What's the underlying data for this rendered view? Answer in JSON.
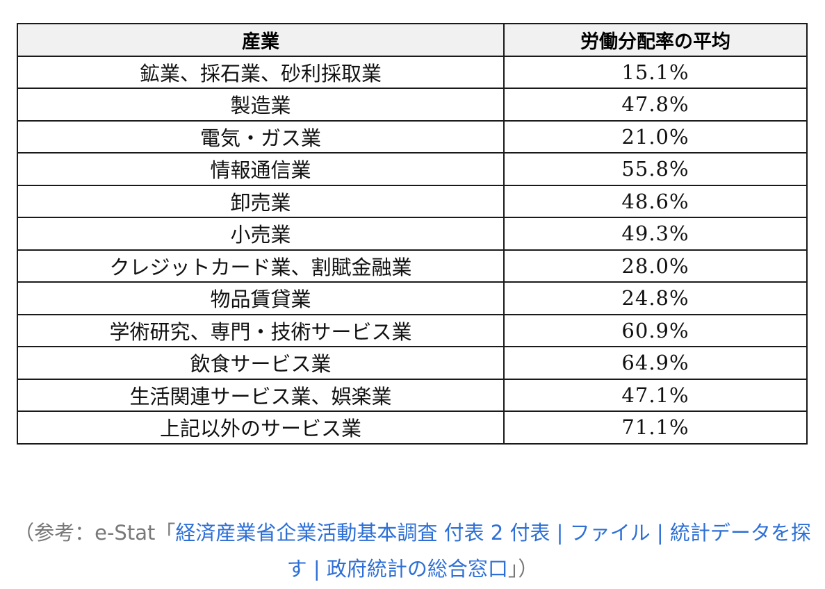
{
  "table": {
    "headers": {
      "industry": "産業",
      "average": "労働分配率の平均"
    },
    "rows": [
      {
        "industry": "鉱業、採石業、砂利採取業",
        "value": "15.1%"
      },
      {
        "industry": "製造業",
        "value": "47.8%"
      },
      {
        "industry": "電気・ガス業",
        "value": "21.0%"
      },
      {
        "industry": "情報通信業",
        "value": "55.8%"
      },
      {
        "industry": "卸売業",
        "value": "48.6%"
      },
      {
        "industry": "小売業",
        "value": "49.3%"
      },
      {
        "industry": "クレジットカード業、割賦金融業",
        "value": "28.0%"
      },
      {
        "industry": "物品賃貸業",
        "value": "24.8%"
      },
      {
        "industry": "学術研究、専門・技術サービス業",
        "value": "60.9%"
      },
      {
        "industry": "飲食サービス業",
        "value": "64.9%"
      },
      {
        "industry": "生活関連サービス業、娯楽業",
        "value": "47.1%"
      },
      {
        "industry": "上記以外のサービス業",
        "value": "71.1%"
      }
    ]
  },
  "source": {
    "prefix": "（参考：e-Stat「",
    "link_text": "経済産業省企業活動基本調査 付表 2 付表 | ファイル | 統計データを探す | 政府統計の総合窓口",
    "suffix": "」）"
  },
  "colors": {
    "link": "#2d6fd6",
    "source_text": "#777777",
    "header_bg": "#f1f1f1",
    "border": "#1a1a1a"
  }
}
